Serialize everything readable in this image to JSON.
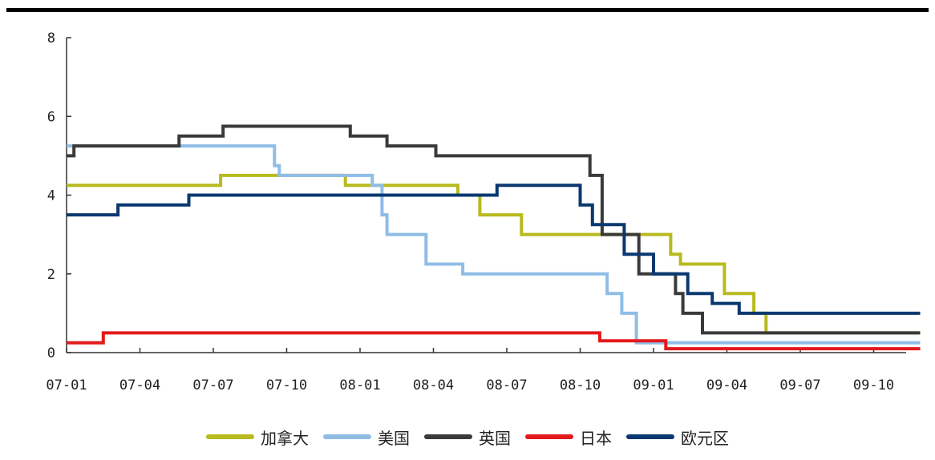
{
  "chart_data": {
    "type": "line",
    "step": true,
    "ylim": [
      0,
      8
    ],
    "yticks": [
      "0",
      "2",
      "4",
      "6",
      "8"
    ],
    "xticks": [
      "07-01",
      "07-04",
      "07-07",
      "07-10",
      "08-01",
      "08-04",
      "08-07",
      "08-10",
      "09-01",
      "09-04",
      "09-07",
      "09-10"
    ],
    "xlim": [
      0,
      35
    ],
    "grid": false,
    "legend_position": "bottom",
    "series": [
      {
        "name": "加拿大",
        "color": "#b8ba1e",
        "points": [
          [
            0,
            4.25
          ],
          [
            6.3,
            4.25
          ],
          [
            6.3,
            4.5
          ],
          [
            11,
            4.5
          ],
          [
            11,
            4.5
          ],
          [
            11.4,
            4.5
          ],
          [
            11.4,
            4.25
          ],
          [
            15.9,
            4.25
          ],
          [
            16,
            4.25
          ],
          [
            16,
            4.0
          ],
          [
            16.9,
            4.0
          ],
          [
            16.9,
            3.5
          ],
          [
            18.6,
            3.5
          ],
          [
            18.6,
            3.0
          ],
          [
            24.7,
            3.0
          ],
          [
            24.7,
            2.5
          ],
          [
            25.1,
            2.5
          ],
          [
            25.1,
            2.25
          ],
          [
            26.9,
            2.25
          ],
          [
            26.9,
            1.5
          ],
          [
            28.1,
            1.5
          ],
          [
            28.1,
            1.0
          ],
          [
            28.6,
            1.0
          ],
          [
            28.6,
            0.5
          ],
          [
            34.9,
            0.5
          ]
        ]
      },
      {
        "name": "美国",
        "color": "#8fbde6",
        "points": [
          [
            0,
            5.25
          ],
          [
            8.5,
            5.25
          ],
          [
            8.5,
            4.75
          ],
          [
            8.7,
            4.75
          ],
          [
            8.7,
            4.5
          ],
          [
            12.5,
            4.5
          ],
          [
            12.5,
            4.25
          ],
          [
            12.9,
            4.25
          ],
          [
            12.9,
            3.5
          ],
          [
            13.1,
            3.5
          ],
          [
            13.1,
            3.0
          ],
          [
            14.7,
            3.0
          ],
          [
            14.7,
            2.25
          ],
          [
            16.2,
            2.25
          ],
          [
            16.2,
            2.0
          ],
          [
            22.1,
            2.0
          ],
          [
            22.1,
            1.5
          ],
          [
            22.7,
            1.5
          ],
          [
            22.7,
            1.0
          ],
          [
            23.3,
            1.0
          ],
          [
            23.3,
            0.25
          ],
          [
            34.9,
            0.25
          ]
        ]
      },
      {
        "name": "英国",
        "color": "#3a3a3a",
        "points": [
          [
            0,
            5.0
          ],
          [
            0.3,
            5.0
          ],
          [
            0.3,
            5.25
          ],
          [
            4.6,
            5.25
          ],
          [
            4.6,
            5.5
          ],
          [
            6.4,
            5.5
          ],
          [
            6.4,
            5.75
          ],
          [
            11.2,
            5.75
          ],
          [
            11.2,
            5.75
          ],
          [
            11.6,
            5.75
          ],
          [
            11.6,
            5.5
          ],
          [
            13.1,
            5.5
          ],
          [
            13.1,
            5.25
          ],
          [
            15.1,
            5.25
          ],
          [
            15.1,
            5.0
          ],
          [
            21.4,
            5.0
          ],
          [
            21.4,
            4.5
          ],
          [
            21.9,
            4.5
          ],
          [
            21.9,
            3.0
          ],
          [
            23.4,
            3.0
          ],
          [
            23.4,
            2.0
          ],
          [
            24.9,
            2.0
          ],
          [
            24.9,
            1.5
          ],
          [
            25.2,
            1.5
          ],
          [
            25.2,
            1.0
          ],
          [
            26.0,
            1.0
          ],
          [
            26.0,
            0.5
          ],
          [
            34.9,
            0.5
          ]
        ]
      },
      {
        "name": "日本",
        "color": "#e31a1c",
        "points": [
          [
            0,
            0.25
          ],
          [
            1.5,
            0.25
          ],
          [
            1.5,
            0.5
          ],
          [
            21.8,
            0.5
          ],
          [
            21.8,
            0.3
          ],
          [
            24.5,
            0.3
          ],
          [
            24.5,
            0.1
          ],
          [
            34.9,
            0.1
          ]
        ]
      },
      {
        "name": "欧元区",
        "color": "#0a3870",
        "points": [
          [
            0,
            3.5
          ],
          [
            2.1,
            3.5
          ],
          [
            2.1,
            3.75
          ],
          [
            5.0,
            3.75
          ],
          [
            5.0,
            4.0
          ],
          [
            17.6,
            4.0
          ],
          [
            17.6,
            4.25
          ],
          [
            21.0,
            4.25
          ],
          [
            21.0,
            3.75
          ],
          [
            21.5,
            3.75
          ],
          [
            21.5,
            3.25
          ],
          [
            22.8,
            3.25
          ],
          [
            22.8,
            2.5
          ],
          [
            24.0,
            2.5
          ],
          [
            24.0,
            2.0
          ],
          [
            25.4,
            2.0
          ],
          [
            25.4,
            1.5
          ],
          [
            26.4,
            1.5
          ],
          [
            26.4,
            1.25
          ],
          [
            27.5,
            1.25
          ],
          [
            27.5,
            1.0
          ],
          [
            34.9,
            1.0
          ]
        ]
      }
    ]
  }
}
